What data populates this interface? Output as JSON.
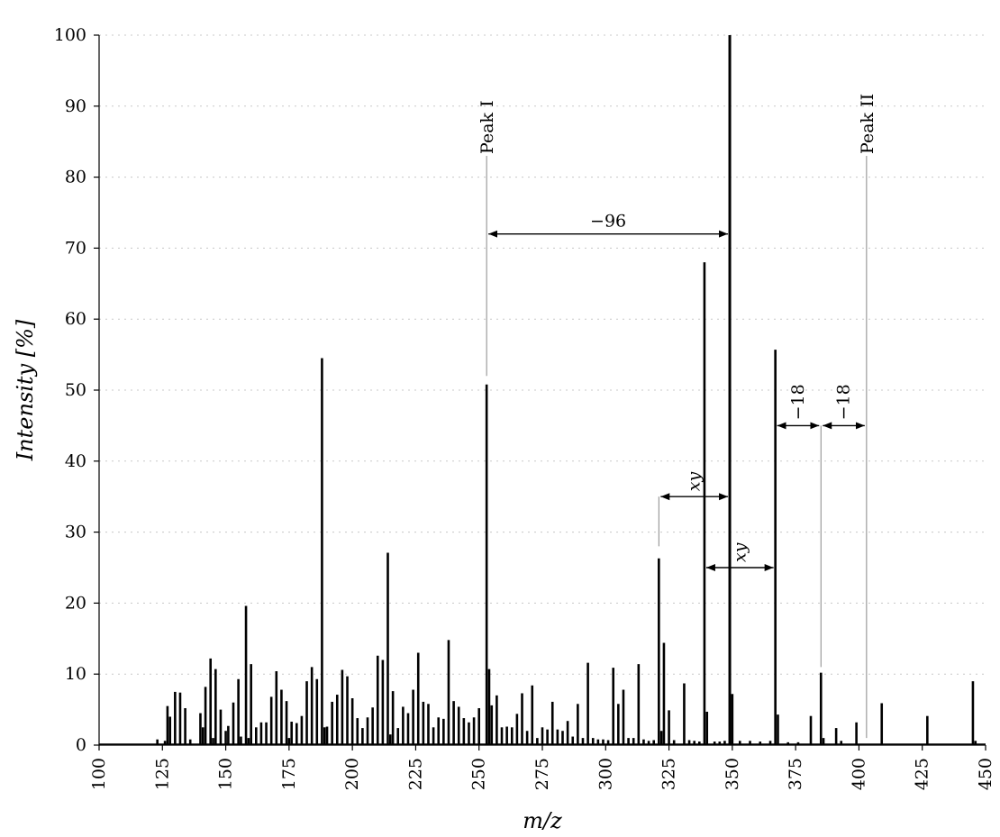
{
  "chart_data": {
    "type": "bar",
    "x_label": "m/z",
    "y_label": "Intensity [%]",
    "xlim": [
      100,
      450
    ],
    "ylim": [
      0,
      100
    ],
    "x_ticks": [
      100,
      125,
      150,
      175,
      200,
      225,
      250,
      275,
      300,
      325,
      350,
      375,
      400,
      425,
      450
    ],
    "y_ticks": [
      0,
      10,
      20,
      30,
      40,
      50,
      60,
      70,
      80,
      90,
      100
    ],
    "grid": "horizontal dotted",
    "peaks": [
      [
        123,
        0.8
      ],
      [
        126,
        0.6
      ],
      [
        127,
        5.5
      ],
      [
        128,
        4.0
      ],
      [
        130,
        7.5
      ],
      [
        132,
        7.4
      ],
      [
        134,
        5.2
      ],
      [
        136,
        0.8
      ],
      [
        140,
        4.5
      ],
      [
        141,
        2.5
      ],
      [
        142,
        8.2
      ],
      [
        144,
        12.2
      ],
      [
        145,
        1.0
      ],
      [
        146,
        10.7
      ],
      [
        148,
        5.0
      ],
      [
        150,
        2.0
      ],
      [
        151,
        2.7
      ],
      [
        153,
        6.0
      ],
      [
        155,
        9.3
      ],
      [
        156,
        1.2
      ],
      [
        158,
        19.6
      ],
      [
        159,
        1.0
      ],
      [
        160,
        11.4
      ],
      [
        162,
        2.5
      ],
      [
        164,
        3.2
      ],
      [
        166,
        3.2
      ],
      [
        168,
        6.8
      ],
      [
        170,
        10.4
      ],
      [
        172,
        7.8
      ],
      [
        174,
        6.2
      ],
      [
        175,
        1.0
      ],
      [
        176,
        3.3
      ],
      [
        178,
        3.1
      ],
      [
        180,
        4.1
      ],
      [
        182,
        9.0
      ],
      [
        184,
        11.0
      ],
      [
        186,
        9.3
      ],
      [
        188,
        54.5
      ],
      [
        189,
        2.5
      ],
      [
        190,
        2.6
      ],
      [
        192,
        6.1
      ],
      [
        194,
        7.1
      ],
      [
        196,
        10.6
      ],
      [
        198,
        9.7
      ],
      [
        200,
        6.6
      ],
      [
        202,
        3.8
      ],
      [
        204,
        2.4
      ],
      [
        206,
        3.9
      ],
      [
        208,
        5.3
      ],
      [
        210,
        12.6
      ],
      [
        212,
        12.0
      ],
      [
        214,
        27.1
      ],
      [
        215,
        1.5
      ],
      [
        216,
        7.6
      ],
      [
        218,
        2.4
      ],
      [
        220,
        5.4
      ],
      [
        222,
        4.5
      ],
      [
        224,
        7.8
      ],
      [
        226,
        13.0
      ],
      [
        228,
        6.1
      ],
      [
        230,
        5.8
      ],
      [
        232,
        2.5
      ],
      [
        234,
        3.9
      ],
      [
        236,
        3.7
      ],
      [
        238,
        14.8
      ],
      [
        240,
        6.2
      ],
      [
        242,
        5.4
      ],
      [
        244,
        3.8
      ],
      [
        246,
        3.2
      ],
      [
        248,
        3.9
      ],
      [
        250,
        5.2
      ],
      [
        253,
        50.8
      ],
      [
        254,
        10.7
      ],
      [
        255,
        5.6
      ],
      [
        257,
        7.0
      ],
      [
        259,
        2.5
      ],
      [
        261,
        2.6
      ],
      [
        263,
        2.5
      ],
      [
        265,
        4.4
      ],
      [
        267,
        7.3
      ],
      [
        269,
        2.0
      ],
      [
        271,
        8.4
      ],
      [
        273,
        1.0
      ],
      [
        275,
        2.5
      ],
      [
        277,
        2.2
      ],
      [
        279,
        6.1
      ],
      [
        281,
        2.2
      ],
      [
        283,
        2.0
      ],
      [
        285,
        3.4
      ],
      [
        287,
        1.2
      ],
      [
        289,
        5.8
      ],
      [
        291,
        1.0
      ],
      [
        293,
        11.6
      ],
      [
        295,
        1.0
      ],
      [
        297,
        0.8
      ],
      [
        299,
        0.8
      ],
      [
        301,
        0.7
      ],
      [
        303,
        10.9
      ],
      [
        305,
        5.8
      ],
      [
        307,
        7.8
      ],
      [
        309,
        1.0
      ],
      [
        311,
        1.0
      ],
      [
        313,
        11.4
      ],
      [
        315,
        0.8
      ],
      [
        317,
        0.6
      ],
      [
        319,
        0.7
      ],
      [
        321,
        26.3
      ],
      [
        322,
        2.0
      ],
      [
        323,
        14.4
      ],
      [
        325,
        4.9
      ],
      [
        327,
        0.7
      ],
      [
        331,
        8.7
      ],
      [
        333,
        0.7
      ],
      [
        335,
        0.6
      ],
      [
        337,
        0.5
      ],
      [
        339,
        68.0
      ],
      [
        340,
        4.7
      ],
      [
        343,
        0.5
      ],
      [
        345,
        0.5
      ],
      [
        347,
        0.6
      ],
      [
        349,
        100.0
      ],
      [
        350,
        7.2
      ],
      [
        353,
        0.6
      ],
      [
        357,
        0.6
      ],
      [
        361,
        0.5
      ],
      [
        365,
        0.6
      ],
      [
        367,
        55.7
      ],
      [
        368,
        4.3
      ],
      [
        372,
        0.4
      ],
      [
        376,
        0.4
      ],
      [
        381,
        4.1
      ],
      [
        385,
        10.2
      ],
      [
        386,
        1.0
      ],
      [
        391,
        2.4
      ],
      [
        393,
        0.6
      ],
      [
        399,
        3.2
      ],
      [
        409,
        5.9
      ],
      [
        427,
        4.1
      ],
      [
        445,
        9.0
      ],
      [
        446,
        0.6
      ]
    ],
    "annotations": {
      "peak1": {
        "label": "Peak I",
        "x": 253,
        "line_from": 52,
        "line_to": 83
      },
      "peak2": {
        "label": "Peak II",
        "x": 403,
        "line_from": 1,
        "line_to": 83
      },
      "diff96": {
        "label": "−96",
        "x1": 253,
        "x2": 349,
        "y": 72
      },
      "xy1": {
        "label": "xy",
        "x1": 321,
        "x2": 349,
        "y": 35
      },
      "xy2": {
        "label": "xy",
        "x1": 339,
        "x2": 367,
        "y": 25
      },
      "minus18a": {
        "label": "−18",
        "x1": 367,
        "x2": 385,
        "y": 45
      },
      "minus18b": {
        "label": "−18",
        "x1": 385,
        "x2": 403,
        "y": 45
      },
      "guide321": {
        "x": 321,
        "y1": 28,
        "y2": 35
      },
      "guide385": {
        "x": 385,
        "y1": 11,
        "y2": 45
      }
    }
  }
}
